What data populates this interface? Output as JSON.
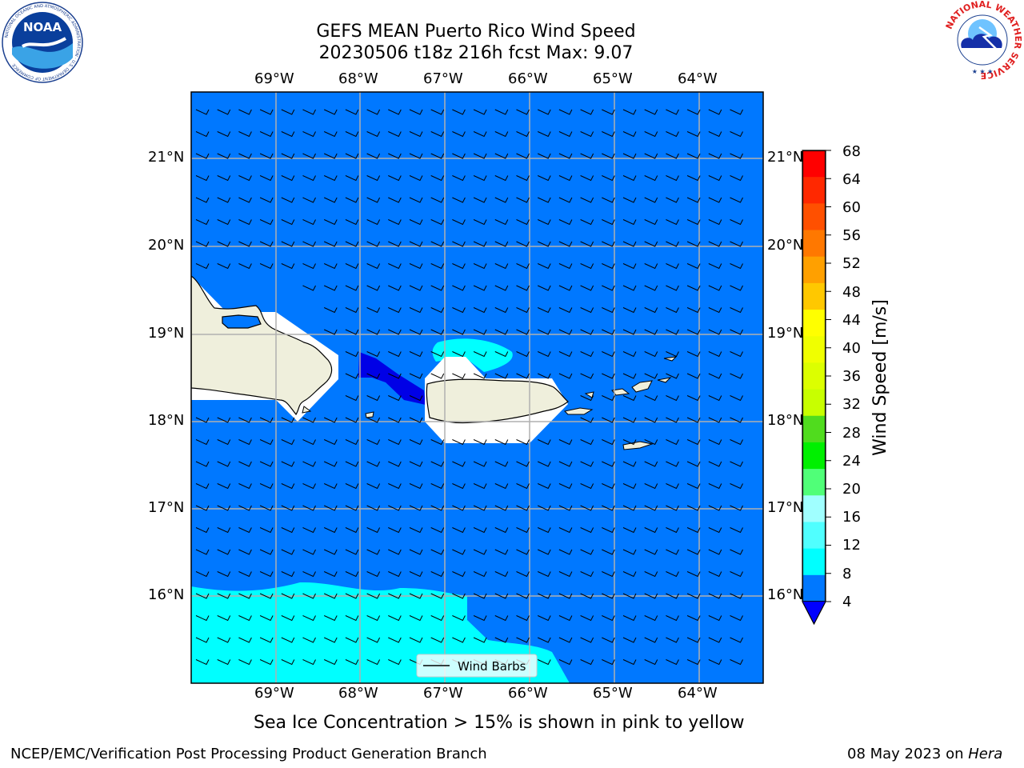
{
  "title": {
    "line1": "GEFS MEAN Puerto Rico Wind Speed",
    "line2": "20230506 t18z 216h fcst   Max: 9.07"
  },
  "logos": {
    "left": "NOAA",
    "left_ring": "NATIONAL OCEANIC AND ATMOSPHERIC ADMINISTRATION · U.S. DEPARTMENT OF COMMERCE",
    "right_ring": "NATIONAL WEATHER SERVICE"
  },
  "map": {
    "lon_labels": [
      "69°W",
      "68°W",
      "67°W",
      "66°W",
      "65°W",
      "64°W"
    ],
    "lat_labels": [
      "21°N",
      "20°N",
      "19°N",
      "18°N",
      "17°N",
      "16°N"
    ],
    "legend_label": "Wind Barbs",
    "fill_colors": {
      "ocean": "#0078ff",
      "low_wind": "#0000e6",
      "band_8_12": "#00ffff",
      "land": "#efefdc",
      "masked": "#ffffff"
    }
  },
  "colorbar": {
    "label": "Wind Speed [m/s]",
    "ticks": [
      "68",
      "64",
      "60",
      "56",
      "52",
      "48",
      "44",
      "40",
      "36",
      "32",
      "28",
      "24",
      "20",
      "16",
      "12",
      "8",
      "4"
    ],
    "colors": [
      "#ff0000",
      "#ff2800",
      "#ff5000",
      "#ff7800",
      "#ffa000",
      "#ffc800",
      "#ffff00",
      "#f0ff00",
      "#dcff00",
      "#c8ff00",
      "#50dc1e",
      "#00f000",
      "#50ff78",
      "#a0ffff",
      "#50ffff",
      "#00ffff",
      "#0078ff"
    ],
    "extend_color": "#0000ff"
  },
  "subtitle": "Sea Ice Concentration > 15% is shown in pink to yellow",
  "footer": {
    "left": "NCEP/EMC/Verification Post Processing Product Generation Branch",
    "right_date": "08 May 2023 on ",
    "right_host": "Hera"
  }
}
